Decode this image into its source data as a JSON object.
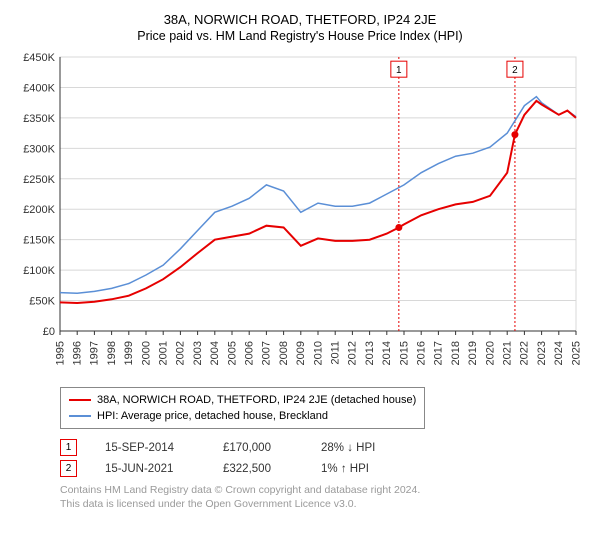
{
  "title_line1": "38A, NORWICH ROAD, THETFORD, IP24 2JE",
  "title_line2": "Price paid vs. HM Land Registry's House Price Index (HPI)",
  "chart": {
    "type": "line",
    "background_color": "#ffffff",
    "grid_color": "#d8d8d8",
    "axis_color": "#333333",
    "x_years": [
      1995,
      1996,
      1997,
      1998,
      1999,
      2000,
      2001,
      2002,
      2003,
      2004,
      2005,
      2006,
      2007,
      2008,
      2009,
      2010,
      2011,
      2012,
      2013,
      2014,
      2015,
      2016,
      2017,
      2018,
      2019,
      2020,
      2021,
      2022,
      2023,
      2024,
      2025
    ],
    "ylim": [
      0,
      450000
    ],
    "ytick_step": 50000,
    "ytick_labels": [
      "£0",
      "£50K",
      "£100K",
      "£150K",
      "£200K",
      "£250K",
      "£300K",
      "£350K",
      "£400K",
      "£450K"
    ],
    "series": [
      {
        "name": "38A, NORWICH ROAD, THETFORD, IP24 2JE (detached house)",
        "color": "#e60000",
        "line_width": 2,
        "data": [
          [
            1995,
            47000
          ],
          [
            1996,
            46000
          ],
          [
            1997,
            48000
          ],
          [
            1998,
            52000
          ],
          [
            1999,
            58000
          ],
          [
            2000,
            70000
          ],
          [
            2001,
            85000
          ],
          [
            2002,
            105000
          ],
          [
            2003,
            128000
          ],
          [
            2004,
            150000
          ],
          [
            2005,
            155000
          ],
          [
            2006,
            160000
          ],
          [
            2007,
            173000
          ],
          [
            2008,
            170000
          ],
          [
            2009,
            140000
          ],
          [
            2010,
            152000
          ],
          [
            2011,
            148000
          ],
          [
            2012,
            148000
          ],
          [
            2013,
            150000
          ],
          [
            2014,
            160000
          ],
          [
            2014.7,
            170000
          ],
          [
            2015,
            175000
          ],
          [
            2016,
            190000
          ],
          [
            2017,
            200000
          ],
          [
            2018,
            208000
          ],
          [
            2019,
            212000
          ],
          [
            2020,
            222000
          ],
          [
            2021,
            260000
          ],
          [
            2021.45,
            322500
          ],
          [
            2022,
            355000
          ],
          [
            2022.7,
            378000
          ],
          [
            2023,
            372000
          ],
          [
            2024,
            355000
          ],
          [
            2024.5,
            362000
          ],
          [
            2025,
            350000
          ]
        ]
      },
      {
        "name": "HPI: Average price, detached house, Breckland",
        "color": "#5b8fd6",
        "line_width": 1.5,
        "data": [
          [
            1995,
            63000
          ],
          [
            1996,
            62000
          ],
          [
            1997,
            65000
          ],
          [
            1998,
            70000
          ],
          [
            1999,
            78000
          ],
          [
            2000,
            92000
          ],
          [
            2001,
            108000
          ],
          [
            2002,
            135000
          ],
          [
            2003,
            165000
          ],
          [
            2004,
            195000
          ],
          [
            2005,
            205000
          ],
          [
            2006,
            218000
          ],
          [
            2007,
            240000
          ],
          [
            2008,
            230000
          ],
          [
            2009,
            195000
          ],
          [
            2010,
            210000
          ],
          [
            2011,
            205000
          ],
          [
            2012,
            205000
          ],
          [
            2013,
            210000
          ],
          [
            2014,
            225000
          ],
          [
            2015,
            240000
          ],
          [
            2016,
            260000
          ],
          [
            2017,
            275000
          ],
          [
            2018,
            287000
          ],
          [
            2019,
            292000
          ],
          [
            2020,
            302000
          ],
          [
            2021,
            325000
          ],
          [
            2022,
            370000
          ],
          [
            2022.7,
            385000
          ],
          [
            2023,
            375000
          ],
          [
            2024,
            355000
          ],
          [
            2024.5,
            362000
          ],
          [
            2025,
            352000
          ]
        ]
      }
    ],
    "markers": [
      {
        "id": "1",
        "x": 2014.7,
        "y_top": 430000,
        "color": "#e60000"
      },
      {
        "id": "2",
        "x": 2021.45,
        "y_top": 430000,
        "color": "#e60000"
      }
    ]
  },
  "legend": {
    "series1_label": "38A, NORWICH ROAD, THETFORD, IP24 2JE (detached house)",
    "series1_color": "#e60000",
    "series2_label": "HPI: Average price, detached house, Breckland",
    "series2_color": "#5b8fd6"
  },
  "sales": [
    {
      "badge": "1",
      "badge_color": "#e60000",
      "date": "15-SEP-2014",
      "price": "£170,000",
      "delta": "28% ↓ HPI"
    },
    {
      "badge": "2",
      "badge_color": "#e60000",
      "date": "15-JUN-2021",
      "price": "£322,500",
      "delta": "1% ↑ HPI"
    }
  ],
  "footer_line1": "Contains HM Land Registry data © Crown copyright and database right 2024.",
  "footer_line2": "This data is licensed under the Open Government Licence v3.0."
}
